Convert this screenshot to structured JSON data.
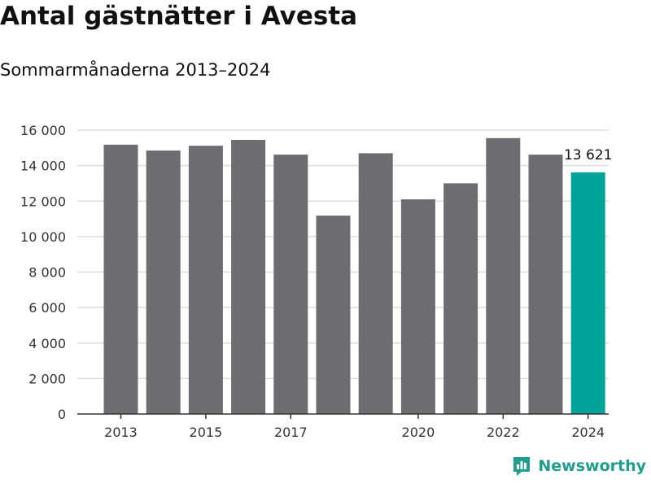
{
  "title": "Antal gästnätter i Avesta",
  "subtitle": "Sommarmånaderna 2013–2024",
  "brand": {
    "name": "Newsworthy",
    "icon": "newsworthy-logo-icon",
    "color": "#1f9e8e"
  },
  "colors": {
    "bar": "#6d6c71",
    "highlight": "#00a397",
    "grid": "#dddddd",
    "axis": "#333333",
    "text": "#333333"
  },
  "chart_data": {
    "type": "bar",
    "x": [
      2013,
      2014,
      2015,
      2016,
      2017,
      2018,
      2019,
      2020,
      2021,
      2022,
      2023,
      2024
    ],
    "values": [
      15180,
      14850,
      15120,
      15450,
      14620,
      11180,
      14700,
      12100,
      13000,
      15550,
      14620,
      13621
    ],
    "highlight_index": 11,
    "data_labels": [
      {
        "index": 11,
        "text": "13 621"
      }
    ],
    "xticks": [
      2013,
      2015,
      2017,
      2020,
      2022,
      2024
    ],
    "yticks": [
      "0",
      "2 000",
      "4 000",
      "6 000",
      "8 000",
      "10 000",
      "12 000",
      "14 000",
      "16 000"
    ],
    "ylim": [
      0,
      16000
    ],
    "grid": true,
    "legend": false
  }
}
